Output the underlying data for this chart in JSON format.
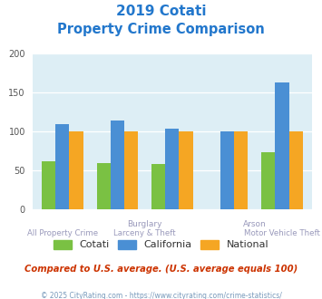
{
  "title_line1": "2019 Cotati",
  "title_line2": "Property Crime Comparison",
  "title_color": "#2277cc",
  "bar_colors": {
    "Cotati": "#7ac143",
    "California": "#4a8fd4",
    "National": "#f5a623"
  },
  "groups": [
    "All Property Crime",
    "Burglary",
    "Larceny & Theft",
    "Arson",
    "Motor Vehicle Theft"
  ],
  "cotati_vals": [
    62,
    60,
    58,
    0,
    73
  ],
  "california_vals": [
    110,
    114,
    104,
    100,
    163
  ],
  "national_vals": [
    100,
    100,
    100,
    100,
    100
  ],
  "ylim": [
    0,
    200
  ],
  "yticks": [
    0,
    50,
    100,
    150,
    200
  ],
  "bg_color": "#ddeef5",
  "note": "Compared to U.S. average. (U.S. average equals 100)",
  "note_color": "#cc3300",
  "footer": "© 2025 CityRating.com - https://www.cityrating.com/crime-statistics/",
  "footer_color": "#7799bb",
  "x_label_color": "#9999bb",
  "legend_color": "#333333"
}
